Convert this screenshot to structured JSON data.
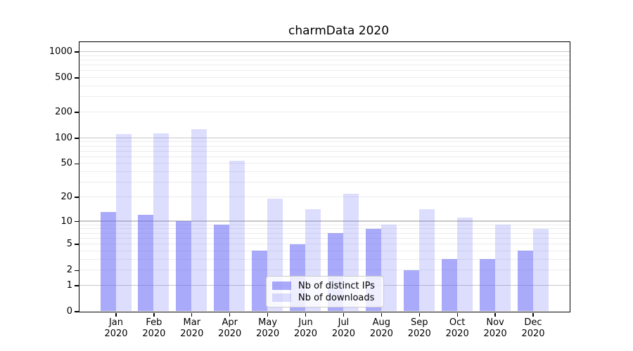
{
  "figure": {
    "title": "charmData 2020"
  },
  "chart_data": {
    "type": "bar",
    "title": "charmData 2020",
    "categories": [
      "Jan 2020",
      "Feb 2020",
      "Mar 2020",
      "Apr 2020",
      "May 2020",
      "Jun 2020",
      "Jul 2020",
      "Aug 2020",
      "Sep 2020",
      "Oct 2020",
      "Nov 2020",
      "Dec 2020"
    ],
    "series": [
      {
        "name": "Nb of distinct IPs",
        "values": [
          13,
          12,
          10,
          9,
          4,
          5,
          7,
          8,
          2,
          3,
          3,
          4
        ],
        "color": "rgba(100,100,245,0.55)"
      },
      {
        "name": "Nb of downloads",
        "values": [
          110,
          113,
          127,
          54,
          19,
          14,
          22,
          9,
          14,
          11,
          9,
          8
        ],
        "color": "rgba(100,100,245,0.22)"
      }
    ],
    "xlabel": "",
    "ylabel": "",
    "yscale": "log1p",
    "ylim": [
      0,
      1300
    ],
    "yticks": [
      0,
      1,
      2,
      5,
      10,
      20,
      50,
      100,
      200,
      500,
      1000
    ],
    "major_gridlines": [
      1,
      10,
      100,
      1000
    ],
    "minor_gridlines": [
      2,
      3,
      4,
      5,
      6,
      7,
      8,
      9,
      20,
      30,
      40,
      50,
      60,
      70,
      80,
      90,
      200,
      300,
      400,
      500,
      600,
      700,
      800,
      900
    ],
    "grid": true,
    "legend_position": "lower-center-inside"
  },
  "colors": {
    "bar_dark": "rgba(100,100,245,0.55)",
    "bar_light": "rgba(100,100,245,0.22)",
    "major_grid": "#c8c8c8",
    "minor_grid": "#ececec",
    "axis": "#000000",
    "text": "#000000",
    "legend_border": "#cccccc",
    "legend_bg": "rgba(255,255,255,0.8)"
  }
}
